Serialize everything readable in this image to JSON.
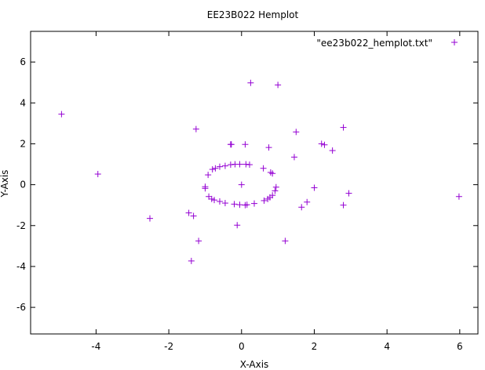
{
  "chart_data": {
    "type": "scatter",
    "title": "EE23B022 Hemplot",
    "xlabel": "X-Axis",
    "ylabel": "Y-Axis",
    "xlim": [
      -5.8,
      6.5
    ],
    "ylim": [
      -7.3,
      7.5
    ],
    "xticks": [
      -4,
      -2,
      0,
      2,
      4,
      6
    ],
    "yticks": [
      -6,
      -4,
      -2,
      0,
      2,
      4,
      6
    ],
    "legend_position": "top-right",
    "grid": false,
    "marker": "plus",
    "color": "#9400d3",
    "series": [
      {
        "name": "\"ee23b022_hemplot.txt\"",
        "points": [
          [
            -4.95,
            3.45
          ],
          [
            -3.95,
            0.52
          ],
          [
            -2.52,
            -1.65
          ],
          [
            -1.45,
            -1.38
          ],
          [
            -1.32,
            -1.53
          ],
          [
            -1.38,
            -3.73
          ],
          [
            -1.25,
            2.72
          ],
          [
            -1.18,
            -2.75
          ],
          [
            -0.3,
            1.97
          ],
          [
            -0.28,
            1.97
          ],
          [
            0.1,
            1.97
          ],
          [
            0.25,
            4.98
          ],
          [
            1.0,
            4.88
          ],
          [
            0.75,
            1.82
          ],
          [
            1.5,
            2.58
          ],
          [
            2.2,
            2.0
          ],
          [
            2.28,
            1.95
          ],
          [
            2.8,
            2.8
          ],
          [
            2.5,
            1.67
          ],
          [
            1.45,
            1.35
          ],
          [
            -0.12,
            -1.98
          ],
          [
            1.2,
            -2.75
          ],
          [
            1.65,
            -1.1
          ],
          [
            1.8,
            -0.85
          ],
          [
            2.0,
            -0.15
          ],
          [
            2.8,
            -1.0
          ],
          [
            2.95,
            -0.42
          ],
          [
            5.98,
            -0.58
          ],
          [
            0.0,
            0.0
          ],
          [
            -1.0,
            -0.18
          ],
          [
            -1.0,
            -0.1
          ],
          [
            -0.92,
            0.48
          ],
          [
            -0.8,
            0.75
          ],
          [
            -0.72,
            0.8
          ],
          [
            -0.6,
            0.88
          ],
          [
            -0.45,
            0.92
          ],
          [
            -0.3,
            0.98
          ],
          [
            -0.18,
            1.0
          ],
          [
            -0.05,
            1.0
          ],
          [
            0.12,
            1.0
          ],
          [
            0.22,
            0.98
          ],
          [
            0.6,
            0.8
          ],
          [
            0.8,
            0.6
          ],
          [
            0.85,
            0.55
          ],
          [
            -0.9,
            -0.58
          ],
          [
            -0.82,
            -0.7
          ],
          [
            -0.75,
            -0.75
          ],
          [
            -0.6,
            -0.82
          ],
          [
            -0.45,
            -0.9
          ],
          [
            -0.2,
            -0.95
          ],
          [
            -0.05,
            -0.98
          ],
          [
            0.1,
            -1.0
          ],
          [
            0.15,
            -0.98
          ],
          [
            0.35,
            -0.92
          ],
          [
            0.62,
            -0.78
          ],
          [
            0.72,
            -0.7
          ],
          [
            0.78,
            -0.62
          ],
          [
            0.85,
            -0.52
          ],
          [
            0.92,
            -0.3
          ],
          [
            0.95,
            -0.12
          ]
        ]
      }
    ]
  }
}
